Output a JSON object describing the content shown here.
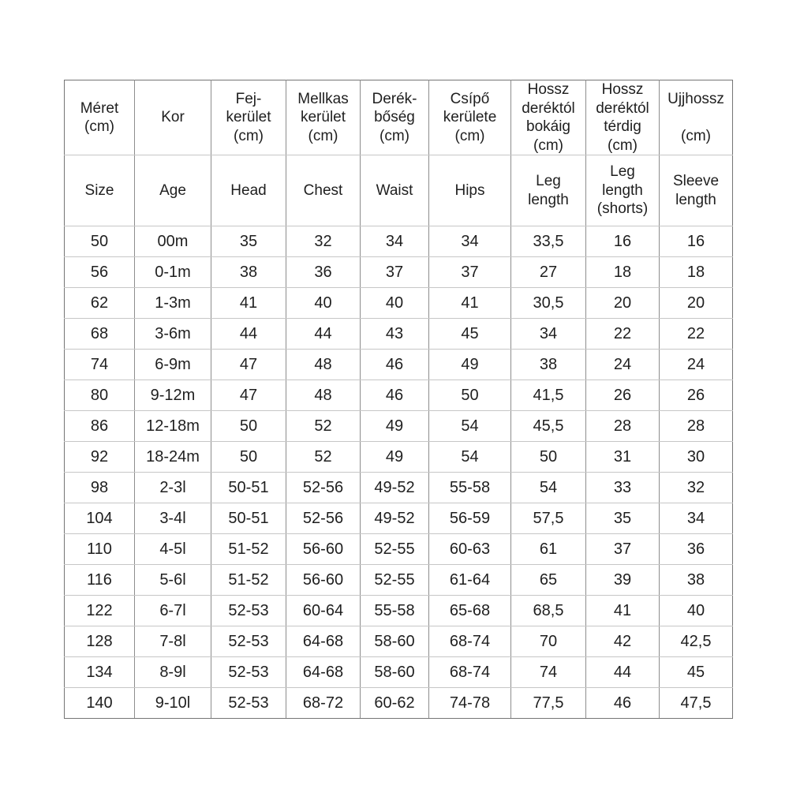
{
  "colors": {
    "background": "#ffffff",
    "text": "#1f1f1f",
    "border_vertical": "#8d8d8d",
    "border_horizontal": "#c6c6c6",
    "border_outer": "#757575"
  },
  "chart_data": {
    "type": "table",
    "title": "",
    "columns_hu": [
      "Méret\n(cm)",
      "Kor",
      "Fej-\nkerület\n(cm)",
      "Mellkas\nkerület\n(cm)",
      "Derék-\nbőség\n(cm)",
      "Csípő\nkerülete\n(cm)",
      "Hossz\nderéktól\nbokáig\n(cm)",
      "Hossz\nderéktól\ntérdig\n(cm)",
      "Ujjhossz\n\n(cm)"
    ],
    "columns_en": [
      "Size",
      "Age",
      "Head",
      "Chest",
      "Waist",
      "Hips",
      "Leg\nlength",
      "Leg\nlength\n(shorts)",
      "Sleeve\nlength"
    ],
    "rows": [
      [
        "50",
        "00m",
        "35",
        "32",
        "34",
        "34",
        "33,5",
        "16",
        "16"
      ],
      [
        "56",
        "0-1m",
        "38",
        "36",
        "37",
        "37",
        "27",
        "18",
        "18"
      ],
      [
        "62",
        "1-3m",
        "41",
        "40",
        "40",
        "41",
        "30,5",
        "20",
        "20"
      ],
      [
        "68",
        "3-6m",
        "44",
        "44",
        "43",
        "45",
        "34",
        "22",
        "22"
      ],
      [
        "74",
        "6-9m",
        "47",
        "48",
        "46",
        "49",
        "38",
        "24",
        "24"
      ],
      [
        "80",
        "9-12m",
        "47",
        "48",
        "46",
        "50",
        "41,5",
        "26",
        "26"
      ],
      [
        "86",
        "12-18m",
        "50",
        "52",
        "49",
        "54",
        "45,5",
        "28",
        "28"
      ],
      [
        "92",
        "18-24m",
        "50",
        "52",
        "49",
        "54",
        "50",
        "31",
        "30"
      ],
      [
        "98",
        "2-3l",
        "50-51",
        "52-56",
        "49-52",
        "55-58",
        "54",
        "33",
        "32"
      ],
      [
        "104",
        "3-4l",
        "50-51",
        "52-56",
        "49-52",
        "56-59",
        "57,5",
        "35",
        "34"
      ],
      [
        "110",
        "4-5l",
        "51-52",
        "56-60",
        "52-55",
        "60-63",
        "61",
        "37",
        "36"
      ],
      [
        "116",
        "5-6l",
        "51-52",
        "56-60",
        "52-55",
        "61-64",
        "65",
        "39",
        "38"
      ],
      [
        "122",
        "6-7l",
        "52-53",
        "60-64",
        "55-58",
        "65-68",
        "68,5",
        "41",
        "40"
      ],
      [
        "128",
        "7-8l",
        "52-53",
        "64-68",
        "58-60",
        "68-74",
        "70",
        "42",
        "42,5"
      ],
      [
        "134",
        "8-9l",
        "52-53",
        "64-68",
        "58-60",
        "68-74",
        "74",
        "44",
        "45"
      ],
      [
        "140",
        "9-10l",
        "52-53",
        "68-72",
        "60-62",
        "74-78",
        "77,5",
        "46",
        "47,5"
      ]
    ]
  }
}
